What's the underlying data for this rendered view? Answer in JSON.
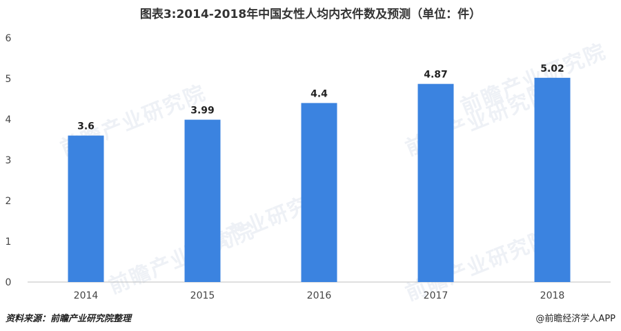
{
  "title": "图表3:2014-2018年中国女性人均内衣件数及预测（单位：件）",
  "source_note": "资料来源：前瞻产业研究院整理",
  "credit": "@前瞻经济学人APP",
  "watermark_text": "前瞻产业研究院",
  "colors": {
    "bar": "#3b83e0",
    "axis": "#bfbfbf"
  },
  "chart_data": {
    "type": "bar",
    "title": "图表3:2014-2018年中国女性人均内衣件数及预测（单位：件）",
    "categories": [
      "2014",
      "2015",
      "2016",
      "2017",
      "2018"
    ],
    "values": [
      3.6,
      3.99,
      4.4,
      4.87,
      5.02
    ],
    "data_labels": [
      "3.6",
      "3.99",
      "4.4",
      "4.87",
      "5.02"
    ],
    "yticks": [
      0,
      1,
      2,
      3,
      4,
      5,
      6
    ],
    "ylim": [
      0,
      6
    ],
    "xlabel": "",
    "ylabel": "",
    "grid": false,
    "legend": "none"
  }
}
